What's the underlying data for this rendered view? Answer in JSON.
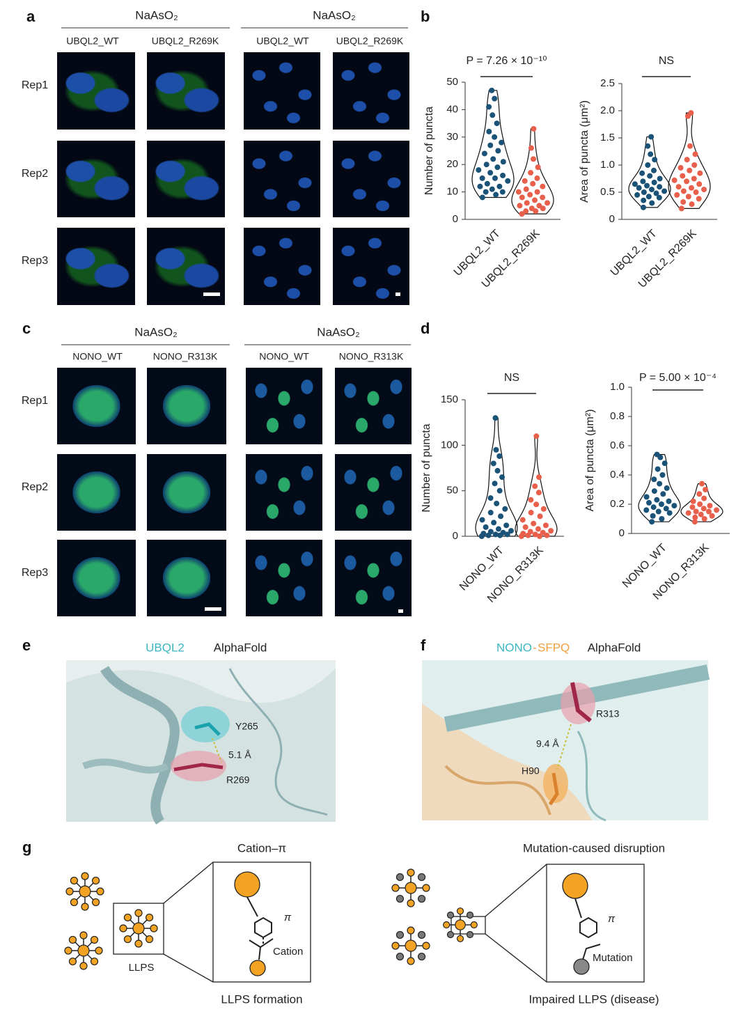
{
  "figure": {
    "panel_labels": [
      "a",
      "b",
      "c",
      "d",
      "e",
      "f",
      "g"
    ],
    "panel_a": {
      "groups": [
        "NaAsO₂",
        "NaAsO₂"
      ],
      "columns": [
        "UBQL2_WT",
        "UBQL2_R269K",
        "UBQL2_WT",
        "UBQL2_R269K"
      ],
      "rows": [
        "Rep1",
        "Rep2",
        "Rep3"
      ]
    },
    "panel_c": {
      "groups": [
        "NaAsO₂",
        "NaAsO₂"
      ],
      "columns": [
        "NONO_WT",
        "NONO_R313K",
        "NONO_WT",
        "NONO_R313K"
      ],
      "rows": [
        "Rep1",
        "Rep2",
        "Rep3"
      ]
    },
    "panel_e": {
      "protein": "UBQL2",
      "source": "AlphaFold",
      "labels": [
        "Y265",
        "5.1 Å",
        "R269"
      ]
    },
    "panel_f": {
      "protein_a": "NONO",
      "separator": "-",
      "protein_b": "SFPQ",
      "source": "AlphaFold",
      "labels": [
        "R313",
        "9.4 Å",
        "H90"
      ]
    },
    "panel_g": {
      "left_title": "Cation–π",
      "right_title": "Mutation-caused disruption",
      "left_caption": "LLPS formation",
      "right_caption": "Impaired LLPS (disease)",
      "llps": "LLPS",
      "pi_left": "π",
      "cation": "Cation",
      "pi_right": "π",
      "mutation": "Mutation"
    }
  },
  "chart_data": [
    {
      "type": "violin",
      "ylabel": "Number of puncta",
      "annotation": "P = 7.26 × 10⁻¹⁰",
      "categories": [
        "UBQL2_WT",
        "UBQL2_R269K"
      ],
      "colors": [
        "#1b5277",
        "#e8604c"
      ],
      "values": [
        [
          8,
          9,
          10,
          10,
          11,
          12,
          12,
          13,
          14,
          15,
          15,
          16,
          17,
          18,
          19,
          20,
          21,
          22,
          24,
          25,
          27,
          28,
          30,
          32,
          35,
          38,
          41,
          44,
          47
        ],
        [
          2,
          3,
          3,
          4,
          4,
          5,
          5,
          6,
          6,
          7,
          8,
          8,
          9,
          10,
          10,
          11,
          12,
          13,
          14,
          15,
          17,
          19,
          22,
          26,
          33
        ]
      ],
      "ylim": [
        0,
        50
      ],
      "yticks": [
        0,
        10,
        20,
        30,
        40,
        50
      ]
    },
    {
      "type": "violin",
      "ylabel": "Area of puncta (μm²)",
      "annotation": "NS",
      "categories": [
        "UBQL2_WT",
        "UBQL2_R269K"
      ],
      "colors": [
        "#1b5277",
        "#e8604c"
      ],
      "values": [
        [
          0.22,
          0.3,
          0.35,
          0.4,
          0.42,
          0.45,
          0.48,
          0.5,
          0.52,
          0.55,
          0.58,
          0.6,
          0.62,
          0.65,
          0.68,
          0.7,
          0.75,
          0.8,
          0.85,
          0.9,
          1.0,
          1.1,
          1.2,
          1.35,
          1.52
        ],
        [
          0.2,
          0.28,
          0.32,
          0.38,
          0.42,
          0.45,
          0.5,
          0.52,
          0.55,
          0.58,
          0.6,
          0.65,
          0.7,
          0.72,
          0.75,
          0.8,
          0.85,
          0.9,
          0.95,
          1.0,
          1.1,
          1.2,
          1.35,
          1.9,
          1.96
        ]
      ],
      "ylim": [
        0,
        2.5
      ],
      "yticks": [
        0,
        0.5,
        {
          "value": 1,
          "label": "1.0"
        },
        1.5,
        {
          "value": 2,
          "label": "2.0"
        },
        2.5
      ]
    },
    {
      "type": "violin",
      "ylabel": "Number of puncta",
      "annotation": "NS",
      "categories": [
        "NONO_WT",
        "NONO_R313K"
      ],
      "colors": [
        "#1b5277",
        "#e8604c"
      ],
      "values": [
        [
          0,
          1,
          1,
          2,
          2,
          3,
          4,
          5,
          6,
          8,
          10,
          12,
          15,
          18,
          22,
          26,
          30,
          36,
          42,
          50,
          58,
          65,
          72,
          80,
          88,
          95,
          130
        ],
        [
          0,
          0,
          1,
          1,
          2,
          3,
          4,
          5,
          6,
          8,
          10,
          12,
          14,
          18,
          22,
          26,
          30,
          35,
          40,
          48,
          55,
          65,
          110
        ]
      ],
      "ylim": [
        0,
        150
      ],
      "yticks": [
        0,
        50,
        100,
        150
      ]
    },
    {
      "type": "violin",
      "ylabel": "Area of puncta (μm²)",
      "annotation": "P = 5.00 × 10⁻⁴",
      "categories": [
        "NONO_WT",
        "NONO_R313K"
      ],
      "colors": [
        "#1b5277",
        "#e8604c"
      ],
      "values": [
        [
          0.08,
          0.1,
          0.12,
          0.14,
          0.15,
          0.16,
          0.17,
          0.18,
          0.19,
          0.2,
          0.21,
          0.22,
          0.23,
          0.25,
          0.27,
          0.29,
          0.31,
          0.34,
          0.37,
          0.4,
          0.44,
          0.48,
          0.52,
          0.54
        ],
        [
          0.08,
          0.1,
          0.11,
          0.12,
          0.13,
          0.14,
          0.15,
          0.15,
          0.16,
          0.17,
          0.18,
          0.19,
          0.2,
          0.22,
          0.24,
          0.27,
          0.3,
          0.34
        ]
      ],
      "ylim": [
        0,
        1
      ],
      "yticks": [
        0,
        0.2,
        0.4,
        0.6,
        0.8,
        {
          "value": 1,
          "label": "1.0"
        }
      ]
    }
  ]
}
